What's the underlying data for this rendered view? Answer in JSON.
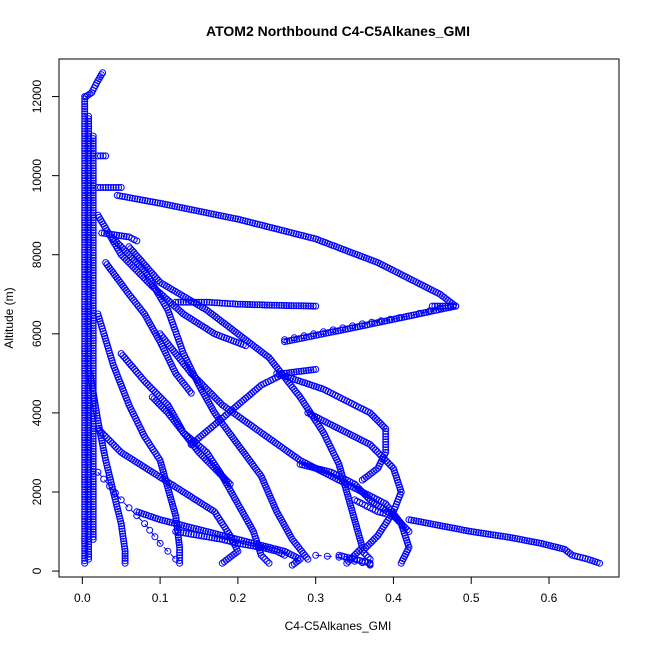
{
  "chart_data": {
    "type": "scatter",
    "title": "ATOM2 Northbound C4-C5Alkanes_GMI",
    "xlabel": "C4-C5Alkanes_GMI",
    "ylabel": "Altitude (m)",
    "xlim": [
      -0.03,
      0.69
    ],
    "ylim": [
      -150,
      12950
    ],
    "xticks": [
      0.0,
      0.1,
      0.2,
      0.3,
      0.4,
      0.5,
      0.6
    ],
    "xtick_labels": [
      "0.0",
      "0.1",
      "0.2",
      "0.3",
      "0.4",
      "0.5",
      "0.6"
    ],
    "yticks": [
      0,
      2000,
      4000,
      6000,
      8000,
      10000,
      12000
    ],
    "ytick_labels": [
      "0",
      "2000",
      "4000",
      "6000",
      "8000",
      "10000",
      "12000"
    ],
    "marker": "open-circle",
    "color": "#0000ff",
    "grid": false,
    "legend": "none",
    "series": [
      {
        "line": false,
        "points": [
          [
            0.003,
            200
          ],
          [
            0.003,
            1500
          ],
          [
            0.003,
            3000
          ],
          [
            0.003,
            4500
          ],
          [
            0.003,
            6000
          ],
          [
            0.003,
            7500
          ],
          [
            0.003,
            9000
          ],
          [
            0.003,
            10500
          ],
          [
            0.003,
            12000
          ]
        ]
      },
      {
        "line": false,
        "points": [
          [
            0.008,
            300
          ],
          [
            0.008,
            2000
          ],
          [
            0.008,
            4000
          ],
          [
            0.008,
            6500
          ],
          [
            0.008,
            9000
          ],
          [
            0.008,
            11500
          ]
        ]
      },
      {
        "line": false,
        "points": [
          [
            0.014,
            800
          ],
          [
            0.014,
            5000
          ],
          [
            0.014,
            9000
          ],
          [
            0.014,
            11000
          ]
        ]
      },
      {
        "line": false,
        "points": [
          [
            0.005,
            12000
          ],
          [
            0.012,
            12100
          ],
          [
            0.02,
            12400
          ],
          [
            0.026,
            12600
          ]
        ]
      },
      {
        "line": false,
        "points": [
          [
            0.02,
            10500
          ],
          [
            0.03,
            10500
          ]
        ]
      },
      {
        "line": false,
        "points": [
          [
            0.02,
            9700
          ],
          [
            0.05,
            9700
          ]
        ]
      },
      {
        "line": false,
        "points": [
          [
            0.025,
            8550
          ],
          [
            0.06,
            8450
          ],
          [
            0.07,
            8350
          ]
        ]
      },
      {
        "line": false,
        "points": [
          [
            0.045,
            9500
          ],
          [
            0.1,
            9300
          ],
          [
            0.2,
            8900
          ],
          [
            0.3,
            8400
          ],
          [
            0.38,
            7800
          ],
          [
            0.44,
            7200
          ],
          [
            0.46,
            7000
          ],
          [
            0.48,
            6700
          ]
        ]
      },
      {
        "line": false,
        "points": [
          [
            0.45,
            6700
          ],
          [
            0.48,
            6700
          ],
          [
            0.36,
            6200
          ],
          [
            0.26,
            5800
          ]
        ]
      },
      {
        "line": false,
        "points": [
          [
            0.12,
            6800
          ],
          [
            0.16,
            6800
          ],
          [
            0.2,
            6750
          ],
          [
            0.25,
            6720
          ],
          [
            0.3,
            6700
          ]
        ]
      },
      {
        "line": false,
        "points": [
          [
            0.02,
            9000
          ],
          [
            0.05,
            8000
          ],
          [
            0.09,
            7200
          ],
          [
            0.13,
            6500
          ],
          [
            0.17,
            6000
          ],
          [
            0.21,
            5700
          ]
        ]
      },
      {
        "line": false,
        "points": [
          [
            0.04,
            8400
          ],
          [
            0.08,
            7600
          ],
          [
            0.11,
            6600
          ],
          [
            0.13,
            5500
          ],
          [
            0.15,
            4700
          ],
          [
            0.17,
            4000
          ],
          [
            0.2,
            3200
          ],
          [
            0.23,
            2400
          ],
          [
            0.25,
            1500
          ],
          [
            0.27,
            800
          ],
          [
            0.29,
            300
          ]
        ]
      },
      {
        "line": false,
        "points": [
          [
            0.06,
            8200
          ],
          [
            0.1,
            7300
          ],
          [
            0.16,
            6600
          ],
          [
            0.2,
            6000
          ],
          [
            0.24,
            5400
          ],
          [
            0.28,
            4400
          ],
          [
            0.31,
            3500
          ],
          [
            0.33,
            2700
          ],
          [
            0.34,
            2000
          ],
          [
            0.35,
            1300
          ],
          [
            0.36,
            600
          ],
          [
            0.34,
            200
          ]
        ]
      },
      {
        "line": false,
        "points": [
          [
            0.1,
            6000
          ],
          [
            0.14,
            5000
          ],
          [
            0.18,
            4200
          ],
          [
            0.23,
            3500
          ],
          [
            0.28,
            2800
          ],
          [
            0.32,
            2400
          ],
          [
            0.36,
            2000
          ],
          [
            0.39,
            1700
          ],
          [
            0.41,
            1200
          ],
          [
            0.42,
            600
          ],
          [
            0.41,
            200
          ]
        ]
      },
      {
        "line": false,
        "points": [
          [
            0.05,
            5500
          ],
          [
            0.08,
            4800
          ],
          [
            0.11,
            4200
          ],
          [
            0.13,
            3500
          ],
          [
            0.16,
            3000
          ],
          [
            0.18,
            2400
          ],
          [
            0.2,
            1700
          ],
          [
            0.22,
            1000
          ],
          [
            0.23,
            400
          ],
          [
            0.24,
            200
          ]
        ]
      },
      {
        "line": false,
        "points": [
          [
            0.02,
            6500
          ],
          [
            0.04,
            5200
          ],
          [
            0.06,
            4200
          ],
          [
            0.08,
            3400
          ],
          [
            0.1,
            2800
          ],
          [
            0.11,
            2100
          ],
          [
            0.12,
            1400
          ],
          [
            0.125,
            600
          ],
          [
            0.125,
            200
          ]
        ]
      },
      {
        "line": false,
        "points": [
          [
            0.01,
            5000
          ],
          [
            0.02,
            3800
          ],
          [
            0.03,
            2800
          ],
          [
            0.04,
            2000
          ],
          [
            0.05,
            1200
          ],
          [
            0.055,
            500
          ],
          [
            0.055,
            200
          ]
        ]
      },
      {
        "line": false,
        "points": [
          [
            0.02,
            3600
          ],
          [
            0.05,
            3000
          ],
          [
            0.09,
            2500
          ],
          [
            0.13,
            2000
          ],
          [
            0.17,
            1500
          ],
          [
            0.19,
            900
          ],
          [
            0.2,
            500
          ],
          [
            0.18,
            200
          ]
        ]
      },
      {
        "line": false,
        "points": [
          [
            0.07,
            1500
          ],
          [
            0.1,
            1300
          ],
          [
            0.14,
            1100
          ],
          [
            0.18,
            900
          ],
          [
            0.22,
            700
          ],
          [
            0.26,
            500
          ],
          [
            0.28,
            300
          ],
          [
            0.27,
            150
          ]
        ]
      },
      {
        "line": false,
        "points": [
          [
            0.29,
            4000
          ],
          [
            0.33,
            3600
          ],
          [
            0.37,
            3200
          ],
          [
            0.4,
            2600
          ],
          [
            0.41,
            2000
          ],
          [
            0.4,
            1500
          ],
          [
            0.38,
            900
          ],
          [
            0.36,
            500
          ],
          [
            0.37,
            300
          ]
        ]
      },
      {
        "line": false,
        "points": [
          [
            0.28,
            2700
          ],
          [
            0.32,
            2500
          ],
          [
            0.35,
            2200
          ],
          [
            0.37,
            1800
          ],
          [
            0.4,
            1400
          ],
          [
            0.42,
            1000
          ]
        ]
      },
      {
        "line": false,
        "points": [
          [
            0.25,
            5000
          ],
          [
            0.28,
            4800
          ],
          [
            0.31,
            4600
          ],
          [
            0.34,
            4300
          ],
          [
            0.37,
            4000
          ],
          [
            0.39,
            3600
          ],
          [
            0.39,
            3000
          ],
          [
            0.38,
            2600
          ],
          [
            0.36,
            2300
          ]
        ]
      },
      {
        "line": false,
        "points": [
          [
            0.14,
            3200
          ],
          [
            0.17,
            3700
          ],
          [
            0.2,
            4200
          ],
          [
            0.23,
            4700
          ],
          [
            0.26,
            5000
          ],
          [
            0.3,
            5100
          ]
        ]
      },
      {
        "line": false,
        "points": [
          [
            0.33,
            400
          ],
          [
            0.35,
            300
          ],
          [
            0.37,
            200
          ],
          [
            0.37,
            150
          ]
        ]
      },
      {
        "line": false,
        "points": [
          [
            0.35,
            1800
          ],
          [
            0.36,
            1700
          ],
          [
            0.37,
            1600
          ],
          [
            0.38,
            1500
          ],
          [
            0.39,
            1450
          ]
        ]
      },
      {
        "line": false,
        "points": [
          [
            0.12,
            1000
          ],
          [
            0.15,
            900
          ],
          [
            0.18,
            800
          ],
          [
            0.2,
            700
          ],
          [
            0.23,
            600
          ],
          [
            0.25,
            500
          ],
          [
            0.26,
            400
          ]
        ]
      },
      {
        "line": false,
        "points": [
          [
            0.09,
            4400
          ],
          [
            0.11,
            4000
          ],
          [
            0.13,
            3500
          ],
          [
            0.15,
            3000
          ],
          [
            0.17,
            2600
          ],
          [
            0.19,
            2200
          ]
        ]
      },
      {
        "line": false,
        "points": [
          [
            0.03,
            7800
          ],
          [
            0.06,
            7000
          ],
          [
            0.08,
            6500
          ],
          [
            0.1,
            5800
          ],
          [
            0.12,
            5000
          ],
          [
            0.14,
            4500
          ]
        ]
      },
      {
        "line": false,
        "points": [
          [
            0.42,
            1300
          ],
          [
            0.46,
            1150
          ],
          [
            0.5,
            1000
          ],
          [
            0.55,
            850
          ],
          [
            0.59,
            700
          ],
          [
            0.62,
            550
          ],
          [
            0.63,
            400
          ],
          [
            0.65,
            300
          ],
          [
            0.665,
            200
          ]
        ]
      },
      {
        "line": true,
        "points": [
          [
            0.26,
            5850
          ],
          [
            0.31,
            6050
          ],
          [
            0.36,
            6250
          ],
          [
            0.42,
            6450
          ],
          [
            0.46,
            6650
          ]
        ]
      },
      {
        "line": true,
        "points": [
          [
            0.02,
            2500
          ],
          [
            0.05,
            1800
          ],
          [
            0.08,
            1200
          ],
          [
            0.1,
            700
          ],
          [
            0.12,
            300
          ]
        ]
      },
      {
        "line": true,
        "points": [
          [
            0.3,
            400
          ],
          [
            0.33,
            350
          ],
          [
            0.35,
            250
          ],
          [
            0.37,
            180
          ]
        ]
      }
    ]
  }
}
